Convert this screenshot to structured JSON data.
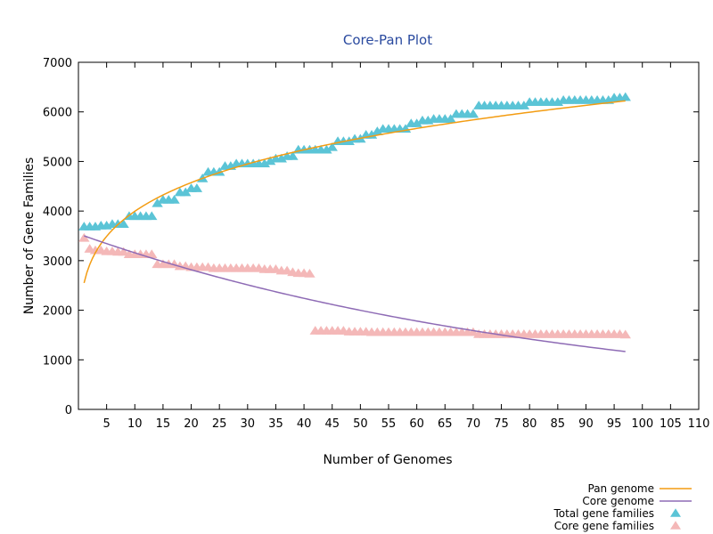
{
  "chart_data": {
    "type": "line",
    "title": "Core-Pan Plot",
    "xlabel": "Number of Genomes",
    "ylabel": "Number of Gene Families",
    "xlim": [
      0,
      110
    ],
    "ylim": [
      0,
      7000
    ],
    "x_ticks": [
      5,
      10,
      15,
      20,
      25,
      30,
      35,
      40,
      45,
      50,
      55,
      60,
      65,
      70,
      75,
      80,
      85,
      90,
      95,
      100,
      105,
      110
    ],
    "y_ticks": [
      0,
      1000,
      2000,
      3000,
      4000,
      5000,
      6000,
      7000
    ],
    "grid": false,
    "legend_position": "bottom-right",
    "colors": {
      "pan_genome": "#f39c12",
      "core_genome": "#8e6bb5",
      "total_gene_families": "#5bc4d6",
      "core_gene_families": "#f4b8b8",
      "title": "#2a4a9f"
    },
    "series": [
      {
        "name": "Pan genome",
        "kind": "curve",
        "marker": "none",
        "x_start": 1,
        "x_end": 97,
        "fit": "power",
        "A": 2550,
        "b": 0.195
      },
      {
        "name": "Core genome",
        "kind": "curve",
        "marker": "none",
        "x_start": 1,
        "x_end": 97,
        "fit": "exponential",
        "A": 3500,
        "k": 0.01144
      },
      {
        "name": "Total gene families",
        "kind": "points",
        "marker": "triangle",
        "x": [],
        "y": [],
        "steps": [
          [
            1,
            3680
          ],
          [
            4,
            3700
          ],
          [
            6,
            3730
          ],
          [
            9,
            3890
          ],
          [
            14,
            4150
          ],
          [
            15,
            4220
          ],
          [
            18,
            4370
          ],
          [
            20,
            4450
          ],
          [
            22,
            4650
          ],
          [
            23,
            4780
          ],
          [
            26,
            4900
          ],
          [
            28,
            4950
          ],
          [
            34,
            5000
          ],
          [
            35,
            5050
          ],
          [
            37,
            5100
          ],
          [
            39,
            5230
          ],
          [
            45,
            5280
          ],
          [
            46,
            5400
          ],
          [
            49,
            5450
          ],
          [
            51,
            5530
          ],
          [
            53,
            5600
          ],
          [
            54,
            5650
          ],
          [
            59,
            5760
          ],
          [
            61,
            5820
          ],
          [
            63,
            5850
          ],
          [
            67,
            5950
          ],
          [
            71,
            6120
          ],
          [
            80,
            6190
          ],
          [
            86,
            6230
          ],
          [
            95,
            6280
          ],
          [
            97,
            6290
          ]
        ]
      },
      {
        "name": "Core gene families",
        "kind": "points",
        "marker": "triangle",
        "x": [],
        "y": [],
        "steps": [
          [
            1,
            3450
          ],
          [
            2,
            3230
          ],
          [
            3,
            3200
          ],
          [
            5,
            3180
          ],
          [
            7,
            3170
          ],
          [
            9,
            3120
          ],
          [
            14,
            2920
          ],
          [
            18,
            2880
          ],
          [
            20,
            2860
          ],
          [
            24,
            2840
          ],
          [
            33,
            2820
          ],
          [
            36,
            2790
          ],
          [
            38,
            2760
          ],
          [
            39,
            2740
          ],
          [
            41,
            2730
          ],
          [
            42,
            1580
          ],
          [
            48,
            1560
          ],
          [
            52,
            1550
          ],
          [
            71,
            1510
          ],
          [
            97,
            1500
          ]
        ]
      }
    ]
  }
}
